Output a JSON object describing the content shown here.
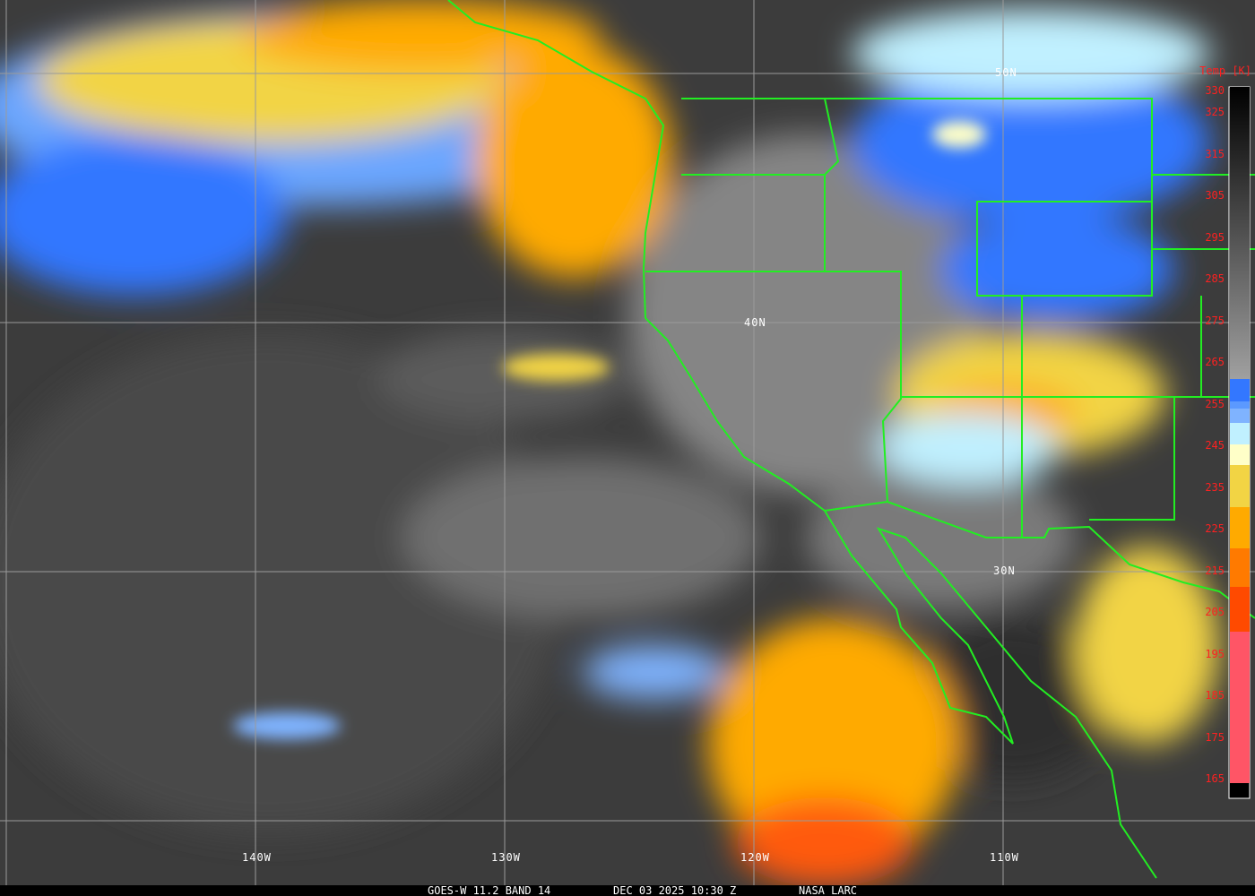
{
  "caption": {
    "satellite": "GOES-W 11.2 BAND 14",
    "datetime": "DEC 03 2025 10:30 Z",
    "source": "NASA LARC"
  },
  "colorbar": {
    "title": "Temp [K]",
    "labels": [
      "330",
      "325",
      "315",
      "305",
      "295",
      "285",
      "275",
      "265",
      "255",
      "245",
      "235",
      "225",
      "215",
      "205",
      "195",
      "185",
      "175",
      "165"
    ],
    "colors": {
      "blue_dark": "#3377ff",
      "blue_mid": "#5b99ff",
      "blue_light": "#7fb3ff",
      "cyan_pale": "#c0f0ff",
      "yellow_pale": "#ffffc8",
      "yellow": "#f2d444",
      "orange": "#ffaa00",
      "orange_dark": "#ff7a00",
      "red_orange": "#ff4a00",
      "pink": "#ff5566"
    }
  },
  "grid_labels": {
    "lat": [
      "50N",
      "40N",
      "30N"
    ],
    "lon": [
      "140W",
      "130W",
      "120W",
      "110W"
    ]
  },
  "colors": {
    "boundaries": "#22ee22",
    "grid": "#9a9a9a"
  }
}
